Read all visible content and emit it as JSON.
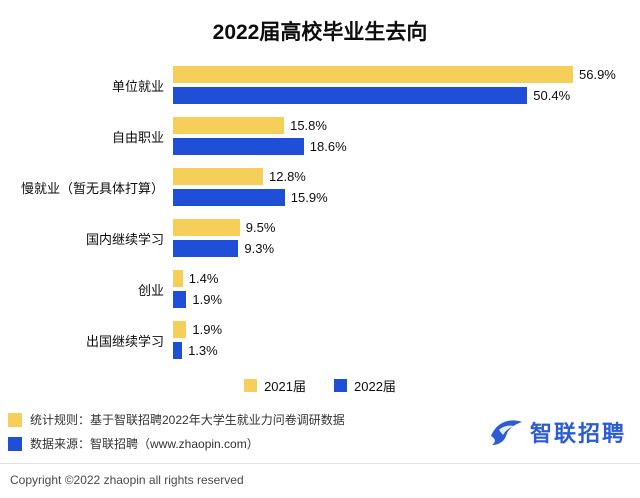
{
  "title": "2022届高校毕业生去向",
  "chart_data": {
    "type": "bar",
    "orientation": "horizontal",
    "title": "2022届高校毕业生去向",
    "categories": [
      "单位就业",
      "自由职业",
      "慢就业（暂无具体打算）",
      "国内继续学习",
      "创业",
      "出国继续学习"
    ],
    "series": [
      {
        "name": "2021届",
        "color": "#F6CF5B",
        "values": [
          56.9,
          15.8,
          12.8,
          9.5,
          1.4,
          1.9
        ]
      },
      {
        "name": "2022届",
        "color": "#1E4FD6",
        "values": [
          50.4,
          18.6,
          15.9,
          9.3,
          1.9,
          1.3
        ]
      }
    ],
    "value_suffix": "%",
    "xlim": [
      0,
      60
    ],
    "grid": false,
    "legend_position": "bottom"
  },
  "legend": {
    "items": [
      {
        "label": "2021届",
        "color": "#F6CF5B"
      },
      {
        "label": "2022届",
        "color": "#1E4FD6"
      }
    ]
  },
  "footer": {
    "notes": [
      {
        "marker_color": "#F6CF5B",
        "text": "统计规则：基于智联招聘2022年大学生就业力问卷调研数据"
      },
      {
        "marker_color": "#1E4FD6",
        "text": "数据来源：智联招聘（www.zhaopin.com）"
      }
    ],
    "copyright": "Copyright ©2022 zhaopin all rights reserved"
  },
  "logo": {
    "text": "智联招聘",
    "color": "#2B5BD7"
  }
}
